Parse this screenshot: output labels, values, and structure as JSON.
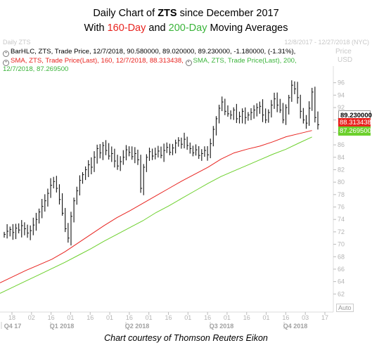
{
  "title": {
    "line1_prefix": "Daily Chart of",
    "ticker": "ZTS",
    "line1_suffix": "since December 2017",
    "line2_prefix": "With",
    "ma160": "160-Day",
    "line2_mid": "and",
    "ma200": "200-Day",
    "line2_suffix": "Moving Averages"
  },
  "header": {
    "left": "Daily ZTS",
    "range": "12/8/2017 - 12/27/2018 (NYC)",
    "price_label": "Price",
    "price_unit": "USD",
    "auto": "Auto"
  },
  "legend": {
    "bars": "BarHLC, ZTS, Trade Price, 12/7/2018, 90.580000, 89.020000, 89.230000, -1.180000, (-1.31%),",
    "sma160": "SMA, ZTS, Trade Price(Last), 160, 12/7/2018, 88.313438,",
    "sma200": "SMA, ZTS, Trade Price(Last), 200,",
    "sma200_cont": "12/7/2018, 87.269500"
  },
  "price_tags": {
    "close": "89.230000",
    "sma160": "88.313438",
    "sma200": "87.269500"
  },
  "credit": "Chart courtesy of Thomson Reuters Eikon",
  "colors": {
    "bars": "#111111",
    "sma160": "#e8231f",
    "sma200": "#6cd02c"
  },
  "chart_data": {
    "type": "line",
    "ylim": [
      60,
      98
    ],
    "grid": false,
    "y_ticks": [
      62,
      64,
      66,
      68,
      70,
      72,
      74,
      76,
      78,
      80,
      82,
      84,
      86,
      88,
      90,
      92,
      94,
      96
    ],
    "x_tick_labels": [
      "18",
      "02",
      "16",
      "01",
      "16",
      "01",
      "16",
      "01",
      "16",
      "01",
      "16",
      "01",
      "16",
      "01",
      "16",
      "03",
      "17"
    ],
    "quarter_labels": [
      "Q4 17",
      "Q1 2018",
      "Q2 2018",
      "Q3 2018",
      "Q4 2018"
    ],
    "series": [
      {
        "type": "ohlc",
        "close": [
          71.6,
          72.1,
          72.4,
          71.9,
          72.6,
          72.3,
          73.0,
          72.5,
          71.8,
          72.2,
          73.1,
          74.0,
          75.2,
          76.1,
          77.0,
          78.2,
          79.5,
          80.1,
          79.0,
          77.2,
          75.0,
          72.5,
          71.0,
          74.5,
          77.0,
          78.6,
          80.3,
          81.2,
          82.0,
          82.8,
          82.4,
          84.0,
          85.4,
          84.7,
          85.9,
          85.1,
          84.2,
          84.6,
          83.4,
          82.6,
          83.3,
          84.0,
          85.2,
          84.8,
          84.1,
          84.6,
          83.6,
          79.0,
          82.4,
          84.0,
          84.9,
          84.2,
          84.5,
          85.0,
          84.3,
          85.1,
          85.6,
          84.8,
          85.5,
          86.3,
          86.7,
          86.1,
          86.9,
          85.9,
          85.4,
          84.7,
          85.2,
          84.3,
          84.6,
          85.1,
          84.4,
          86.2,
          88.5,
          90.2,
          91.9,
          92.9,
          91.4,
          91.0,
          90.8,
          91.6,
          90.2,
          90.6,
          91.4,
          90.4,
          90.8,
          91.2,
          91.6,
          92.0,
          92.2,
          90.8,
          90.0,
          91.2,
          92.4,
          93.4,
          92.4,
          91.6,
          90.0,
          92.0,
          93.6,
          95.6,
          95.0,
          93.6,
          91.4,
          90.0,
          89.5,
          91.9,
          94.5,
          90.4,
          89.23
        ]
      },
      {
        "name": "160-Day",
        "x_range": [
          0,
          106
        ],
        "y": [
          63.8,
          64.8,
          65.8,
          66.7,
          67.6,
          68.8,
          70.2,
          71.6,
          73.0,
          74.3,
          75.4,
          76.6,
          77.8,
          79.0,
          80.2,
          81.3,
          82.4,
          83.7,
          84.7,
          85.3,
          85.8,
          86.5,
          87.3,
          87.8,
          88.31
        ]
      },
      {
        "name": "200-Day",
        "x_range": [
          0,
          106
        ],
        "y": [
          62.1,
          63.1,
          64.1,
          65.1,
          66.1,
          67.1,
          68.2,
          69.3,
          70.5,
          71.6,
          72.7,
          73.8,
          75.1,
          76.2,
          77.4,
          78.6,
          79.8,
          80.9,
          81.8,
          82.7,
          83.6,
          84.5,
          85.3,
          86.3,
          87.27
        ]
      }
    ]
  }
}
